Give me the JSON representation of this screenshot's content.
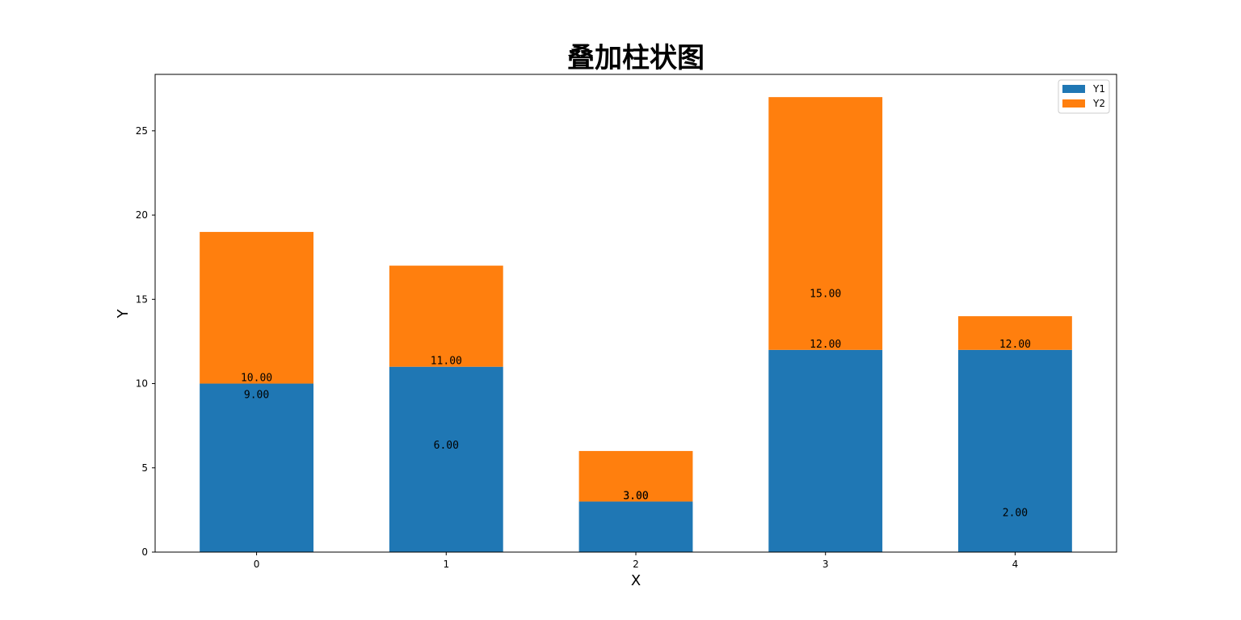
{
  "chart_data": {
    "type": "bar",
    "stacked": true,
    "title": "叠加柱状图",
    "xlabel": "X",
    "ylabel": "Y",
    "categories": [
      "0",
      "1",
      "2",
      "3",
      "4"
    ],
    "series": [
      {
        "name": "Y1",
        "color": "#1f77b4",
        "values": [
          10,
          11,
          3,
          12,
          12
        ]
      },
      {
        "name": "Y2",
        "color": "#ff7f0e",
        "values": [
          9,
          6,
          3,
          15,
          2
        ]
      }
    ],
    "data_labels": [
      [
        {
          "text": "10.00",
          "y": 10
        },
        {
          "text": "9.00",
          "y": 9
        }
      ],
      [
        {
          "text": "11.00",
          "y": 11
        },
        {
          "text": "6.00",
          "y": 6
        }
      ],
      [
        {
          "text": "3.00",
          "y": 3
        },
        {
          "text": "3.00",
          "y": 3
        }
      ],
      [
        {
          "text": "12.00",
          "y": 12
        },
        {
          "text": "15.00",
          "y": 15
        }
      ],
      [
        {
          "text": "12.00",
          "y": 12
        },
        {
          "text": "2.00",
          "y": 2
        }
      ]
    ],
    "ylim": [
      0,
      28.35
    ],
    "yticks": [
      "0",
      "5",
      "10",
      "15",
      "20",
      "25"
    ],
    "grid": false,
    "legend": "top-right"
  }
}
